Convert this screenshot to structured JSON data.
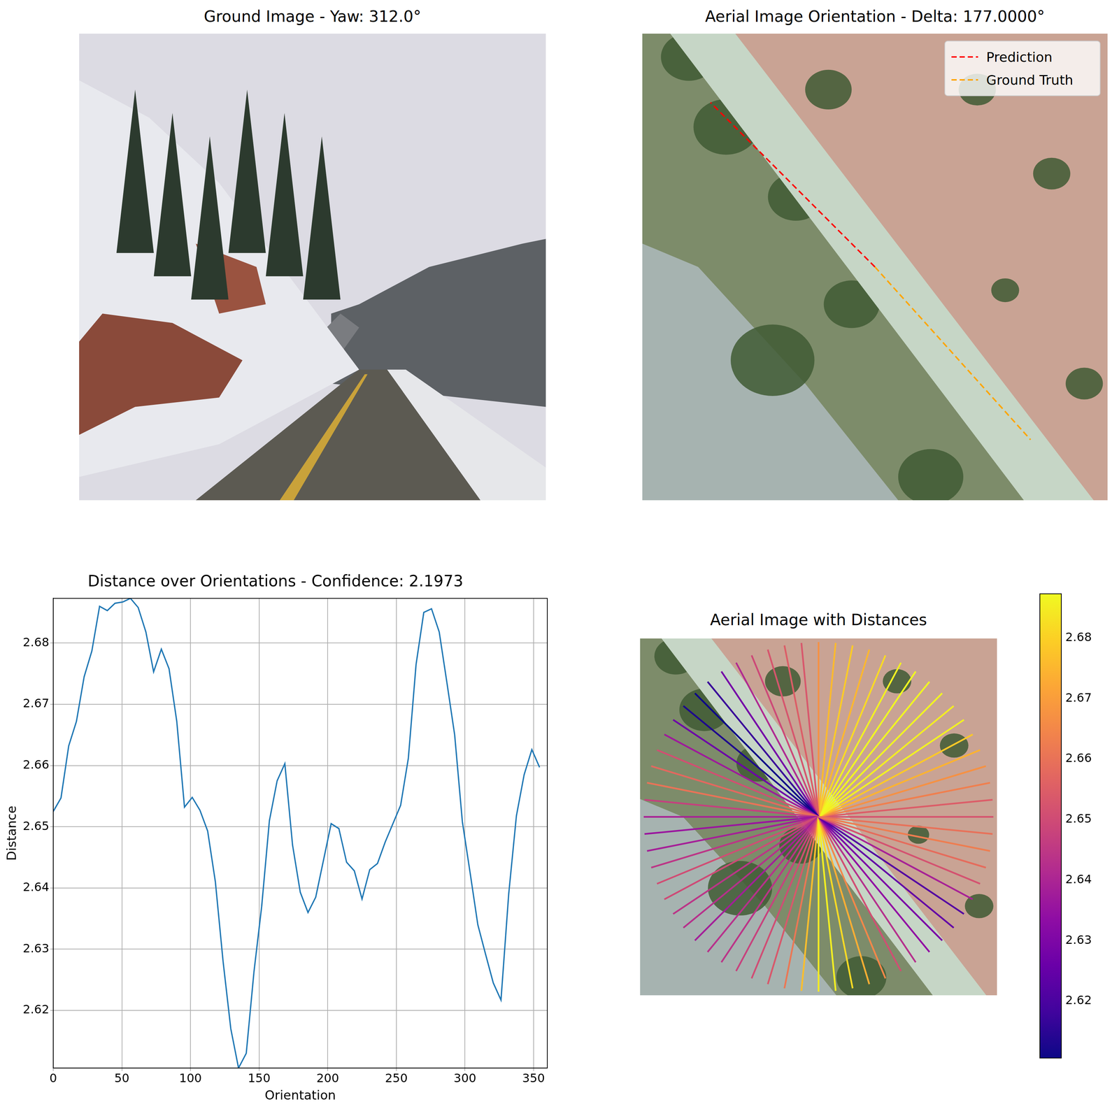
{
  "chart_data": {
    "type": "line",
    "title": "Distance over Orientations - Confidence: 2.1973",
    "x_label": "Orientation",
    "y_label": "Distance",
    "x": [
      0,
      5.625,
      11.25,
      16.875,
      22.5,
      28.125,
      33.75,
      39.375,
      45,
      50.625,
      56.25,
      61.875,
      67.5,
      73.125,
      78.75,
      84.375,
      90,
      95.625,
      101.25,
      106.875,
      112.5,
      118.125,
      123.75,
      129.375,
      135,
      140.625,
      146.25,
      151.875,
      157.5,
      163.125,
      168.75,
      174.375,
      180,
      185.625,
      191.25,
      196.875,
      202.5,
      208.125,
      213.75,
      219.375,
      225,
      230.625,
      236.25,
      241.875,
      247.5,
      253.125,
      258.75,
      264.375,
      270,
      275.625,
      281.25,
      286.875,
      292.5,
      298.125,
      303.75,
      309.375,
      315,
      320.625,
      326.25,
      331.875,
      337.5,
      343.125,
      348.75,
      354.375
    ],
    "values": [
      2.6525,
      2.6547,
      2.6632,
      2.6672,
      2.6745,
      2.6787,
      2.686,
      2.6853,
      2.6865,
      2.6867,
      2.6873,
      2.6858,
      2.6818,
      2.6753,
      2.679,
      2.6758,
      2.6672,
      2.6532,
      2.6548,
      2.6527,
      2.6493,
      2.641,
      2.628,
      2.617,
      2.6106,
      2.613,
      2.6263,
      2.637,
      2.651,
      2.6575,
      2.6603,
      2.647,
      2.6393,
      2.636,
      2.6385,
      2.6445,
      2.6505,
      2.6497,
      2.6442,
      2.6428,
      2.6382,
      2.643,
      2.644,
      2.6475,
      2.6505,
      2.6535,
      2.6612,
      2.6765,
      2.685,
      2.6856,
      2.6818,
      2.6735,
      2.665,
      2.6508,
      2.6425,
      2.634,
      2.6292,
      2.6245,
      2.6217,
      2.639,
      2.6518,
      2.6585,
      2.6626,
      2.6597
    ],
    "color": "#1f77b4",
    "xlim": [
      0,
      360
    ],
    "xticks": [
      0,
      50,
      100,
      150,
      200,
      250,
      300,
      350
    ],
    "ylim": [
      2.6106,
      2.6873
    ],
    "yticks": [
      2.62,
      2.63,
      2.64,
      2.65,
      2.66,
      2.67,
      2.68
    ],
    "grid": true
  },
  "panels": {
    "ground_image": {
      "title": "Ground Image - Yaw: 312.0°"
    },
    "aerial_orientation": {
      "title": "Aerial Image Orientation - Delta: 177.0000°",
      "legend": "upper right",
      "series": [
        {
          "name": "Prediction",
          "color": "#ff0000",
          "line_style": "dashed",
          "orientation": 135
        },
        {
          "name": "Ground Truth",
          "color": "#ffa500",
          "line_style": "dashed",
          "orientation": 312
        }
      ]
    },
    "aerial_distances": {
      "title": "Aerial Image with Distances",
      "colorbar_range": [
        2.6106,
        2.6873
      ],
      "colorbar_ticks": [
        2.62,
        2.63,
        2.64,
        2.65,
        2.66,
        2.67,
        2.68
      ]
    }
  }
}
